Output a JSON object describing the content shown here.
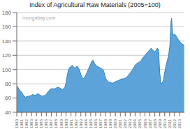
{
  "chart_data": {
    "type": "area",
    "title": "Index of Agricultural Raw Materials (2005=100)",
    "annotation": "mongabay.com",
    "color": "#5ba3d9",
    "grid": "y",
    "xlim": [
      1980,
      2014
    ],
    "xticks": [
      1980,
      1981,
      1982,
      1983,
      1984,
      1985,
      1986,
      1987,
      1988,
      1989,
      1990,
      1991,
      1992,
      1993,
      1994,
      1995,
      1996,
      1997,
      1998,
      1999,
      2000,
      2001,
      2002,
      2003,
      2004,
      2005,
      2006,
      2007,
      2008,
      2009,
      2010,
      2011,
      2012,
      2013
    ],
    "ylim": [
      40,
      180
    ],
    "yticks": [
      40,
      60,
      80,
      100,
      120,
      140,
      160,
      180
    ],
    "x": [
      1980.0,
      1980.25,
      1980.5,
      1980.75,
      1981.0,
      1981.25,
      1981.5,
      1981.75,
      1982.0,
      1982.25,
      1982.5,
      1982.75,
      1983.0,
      1983.25,
      1983.5,
      1983.75,
      1984.0,
      1984.25,
      1984.5,
      1984.75,
      1985.0,
      1985.25,
      1985.5,
      1985.75,
      1986.0,
      1986.25,
      1986.5,
      1986.75,
      1987.0,
      1987.25,
      1987.5,
      1987.75,
      1988.0,
      1988.25,
      1988.5,
      1988.75,
      1989.0,
      1989.25,
      1989.5,
      1989.75,
      1990.0,
      1990.25,
      1990.5,
      1990.75,
      1991.0,
      1991.25,
      1991.5,
      1991.75,
      1992.0,
      1992.25,
      1992.5,
      1992.75,
      1993.0,
      1993.25,
      1993.5,
      1993.75,
      1994.0,
      1994.25,
      1994.5,
      1994.75,
      1995.0,
      1995.25,
      1995.5,
      1995.75,
      1996.0,
      1996.25,
      1996.5,
      1996.75,
      1997.0,
      1997.25,
      1997.5,
      1997.75,
      1998.0,
      1998.25,
      1998.5,
      1998.75,
      1999.0,
      1999.25,
      1999.5,
      1999.75,
      2000.0,
      2000.25,
      2000.5,
      2000.75,
      2001.0,
      2001.25,
      2001.5,
      2001.75,
      2002.0,
      2002.25,
      2002.5,
      2002.75,
      2003.0,
      2003.25,
      2003.5,
      2003.75,
      2004.0,
      2004.25,
      2004.5,
      2004.75,
      2005.0,
      2005.25,
      2005.5,
      2005.75,
      2006.0,
      2006.25,
      2006.5,
      2006.75,
      2007.0,
      2007.25,
      2007.5,
      2007.75,
      2008.0,
      2008.25,
      2008.5,
      2008.75,
      2009.0,
      2009.25,
      2009.5,
      2009.75,
      2010.0,
      2010.25,
      2010.5,
      2010.75,
      2011.0,
      2011.1,
      2011.2,
      2011.3,
      2011.4,
      2011.5,
      2011.6,
      2011.75,
      2012.0,
      2012.25,
      2012.5,
      2012.75,
      2013.0,
      2013.25,
      2013.5,
      2013.75,
      2013.95
    ],
    "values": [
      77,
      75,
      72,
      70,
      68,
      65,
      63,
      61,
      62,
      62,
      63,
      63,
      64,
      65,
      64,
      64,
      65,
      66,
      65,
      64,
      63,
      63,
      63,
      64,
      65,
      68,
      70,
      72,
      73,
      73,
      73,
      73,
      74,
      75,
      75,
      74,
      73,
      72,
      73,
      75,
      82,
      92,
      100,
      103,
      104,
      106,
      104,
      102,
      103,
      105,
      102,
      99,
      93,
      89,
      87,
      89,
      92,
      96,
      100,
      104,
      108,
      112,
      113,
      109,
      106,
      105,
      104,
      103,
      102,
      101,
      100,
      95,
      88,
      85,
      83,
      82,
      82,
      81,
      81,
      82,
      83,
      84,
      84,
      85,
      86,
      87,
      87,
      87,
      88,
      89,
      91,
      93,
      95,
      98,
      100,
      103,
      106,
      108,
      109,
      110,
      111,
      113,
      116,
      118,
      120,
      122,
      124,
      126,
      128,
      130,
      128,
      126,
      125,
      127,
      130,
      128,
      95,
      80,
      81,
      85,
      96,
      105,
      112,
      118,
      130,
      140,
      155,
      168,
      172,
      160,
      152,
      148,
      150,
      148,
      145,
      142,
      140,
      138,
      136,
      135,
      134
    ]
  }
}
